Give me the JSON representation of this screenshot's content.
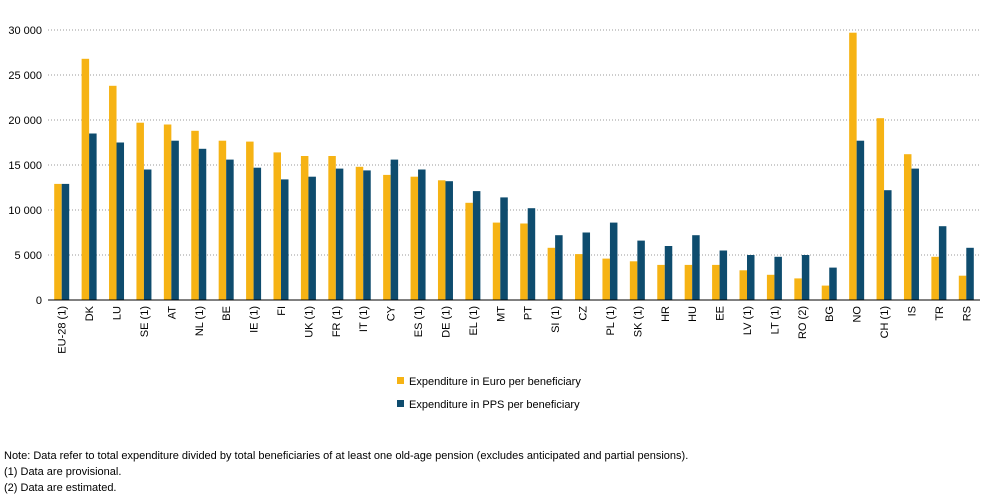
{
  "chart_data": {
    "type": "bar",
    "title": "",
    "xlabel": "",
    "ylabel": "",
    "ylim": [
      0,
      30000
    ],
    "yticks": [
      0,
      5000,
      10000,
      15000,
      20000,
      25000,
      30000
    ],
    "ytick_labels": [
      "0",
      "5 000",
      "10 000",
      "15 000",
      "20 000",
      "25 000",
      "30 000"
    ],
    "grid": "horizontal dotted",
    "legend_position": "bottom-center",
    "categories": [
      "EU-28 (1)",
      "DK",
      "LU",
      "SE (1)",
      "AT",
      "NL (1)",
      "BE",
      "IE (1)",
      "FI",
      "UK (1)",
      "FR (1)",
      "IT (1)",
      "CY",
      "ES (1)",
      "DE (1)",
      "EL (1)",
      "MT",
      "PT",
      "SI (1)",
      "CZ",
      "PL (1)",
      "SK (1)",
      "HR",
      "HU",
      "EE",
      "LV (1)",
      "LT (1)",
      "RO (2)",
      "BG",
      "NO",
      "CH (1)",
      "IS",
      "TR",
      "RS"
    ],
    "series": [
      {
        "name": "Expenditure in Euro per beneficiary",
        "color": "#F6B314",
        "values": [
          12900,
          26800,
          23800,
          19700,
          19500,
          18800,
          17700,
          17600,
          16400,
          16000,
          16000,
          14800,
          13900,
          13700,
          13300,
          10800,
          8600,
          8500,
          5800,
          5100,
          4600,
          4300,
          3900,
          3900,
          3900,
          3300,
          2800,
          2400,
          1600,
          29700,
          20200,
          16200,
          4800,
          2700
        ]
      },
      {
        "name": "Expenditure in PPS per beneficiary",
        "color": "#0E4C6E",
        "values": [
          12900,
          18500,
          17500,
          14500,
          17700,
          16800,
          15600,
          14700,
          13400,
          13700,
          14600,
          14400,
          15600,
          14500,
          13200,
          12100,
          11400,
          10200,
          7200,
          7500,
          8600,
          6600,
          6000,
          7200,
          5500,
          5000,
          4800,
          5000,
          3600,
          17700,
          12200,
          14600,
          8200,
          5800
        ]
      }
    ]
  },
  "notes": {
    "main": "Note: Data refer to total expenditure divided by total beneficiaries of at least one old-age pension (excludes anticipated and partial pensions).",
    "provisional": "(1) Data are provisional.",
    "estimated": "(2) Data are estimated."
  }
}
